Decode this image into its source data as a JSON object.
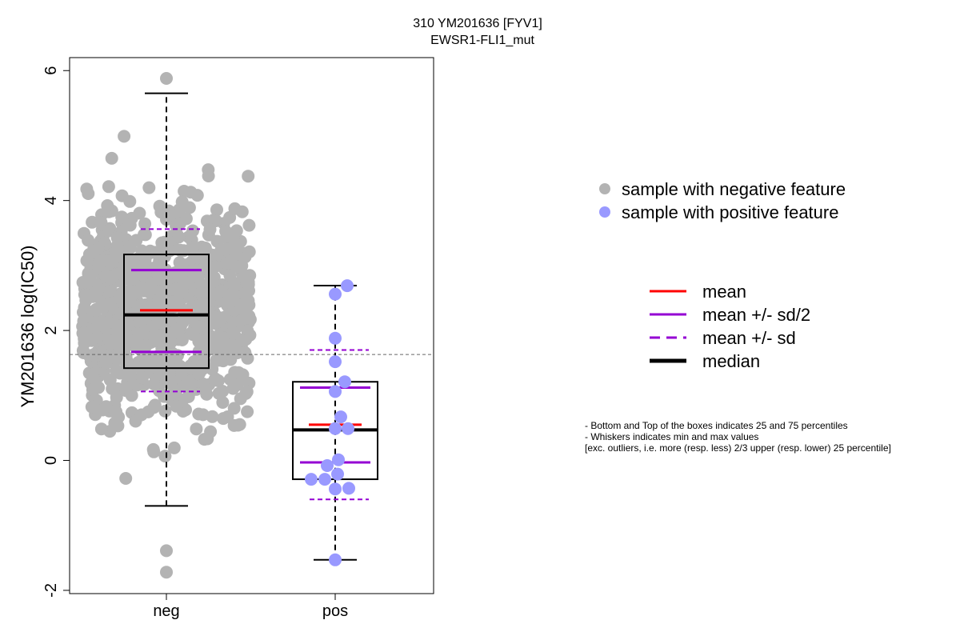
{
  "chart_data": {
    "type": "box",
    "title": [
      "310 YM201636 [FYV1]",
      "EWSR1-FLI1_mut"
    ],
    "ylabel": "YM201636 log(IC50)",
    "xlabel": "",
    "categories": [
      "neg",
      "pos"
    ],
    "ylim": [
      -2.05,
      6.2
    ],
    "yticks": [
      -2,
      0,
      2,
      4,
      6
    ],
    "reference_line": 1.63,
    "groups": [
      {
        "name": "neg",
        "color": "#b3b3b3",
        "box": {
          "whisker_low": -0.7,
          "q1": 1.42,
          "median": 2.24,
          "q3": 3.17,
          "whisker_high": 5.65
        },
        "mean": 2.31,
        "mean_plus_half_sd": 2.93,
        "mean_minus_half_sd": 1.67,
        "mean_plus_sd": 3.56,
        "mean_minus_sd": 1.06,
        "points_shown_as": "dense cloud of about 900 samples from -0.7 to 5.9",
        "outliers": [
          5.88,
          -1.39,
          -1.72
        ]
      },
      {
        "name": "pos",
        "color": "#9999ff",
        "box": {
          "whisker_low": -1.53,
          "q1": -0.29,
          "median": 0.47,
          "q3": 1.21,
          "whisker_high": 2.69
        },
        "mean": 0.55,
        "mean_plus_half_sd": 1.12,
        "mean_minus_half_sd": -0.03,
        "mean_plus_sd": 1.7,
        "mean_minus_sd": -0.6,
        "points": [
          [
            0.15,
            2.69
          ],
          [
            0.0,
            2.56
          ],
          [
            0.0,
            1.88
          ],
          [
            0.0,
            1.52
          ],
          [
            0.12,
            1.21
          ],
          [
            0.0,
            1.06
          ],
          [
            0.07,
            0.67
          ],
          [
            0.0,
            0.49
          ],
          [
            0.16,
            0.49
          ],
          [
            0.04,
            0.01
          ],
          [
            -0.1,
            -0.08
          ],
          [
            0.03,
            -0.21
          ],
          [
            -0.3,
            -0.29
          ],
          [
            -0.13,
            -0.29
          ],
          [
            0.17,
            -0.43
          ],
          [
            0.0,
            -0.44
          ],
          [
            0.0,
            -1.53
          ]
        ]
      }
    ],
    "legend_points": [
      {
        "label": "sample with negative feature",
        "color": "#b3b3b3"
      },
      {
        "label": "sample with positive feature",
        "color": "#9999ff"
      }
    ],
    "legend_lines": [
      {
        "label": "mean",
        "color": "#ff0000",
        "style": "solid"
      },
      {
        "label": "mean +/- sd/2",
        "color": "#9400d3",
        "style": "solid"
      },
      {
        "label": "mean +/- sd",
        "color": "#9400d3",
        "style": "dashed"
      },
      {
        "label": "median",
        "color": "#000000",
        "style": "solid"
      }
    ],
    "notes": [
      "- Bottom and Top of the boxes indicates 25 and 75 percentiles",
      "- Whiskers indicates min and max values",
      "[exc. outliers, i.e. more (resp. less) 2/3 upper (resp. lower) 25 percentile]"
    ]
  }
}
